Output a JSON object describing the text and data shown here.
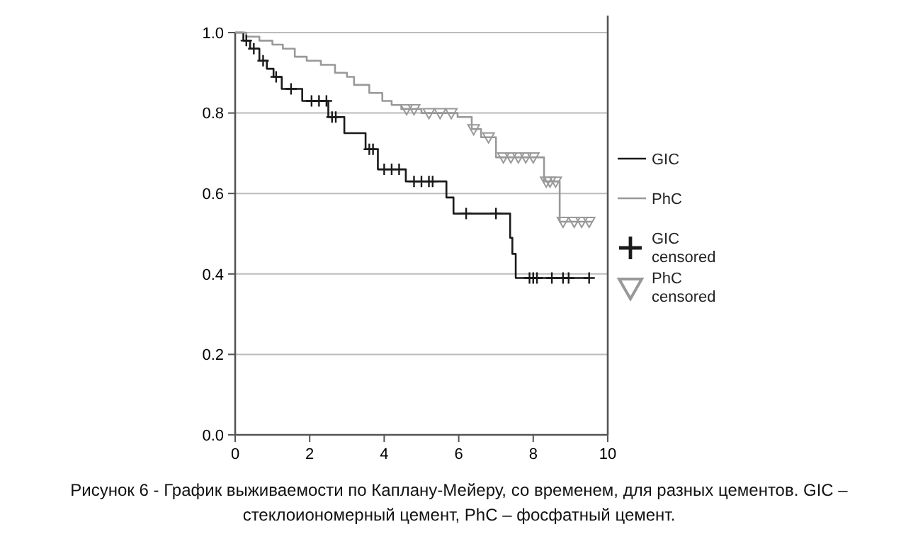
{
  "chart_data": {
    "type": "step",
    "xlim": [
      0,
      10
    ],
    "ylim": [
      0,
      1
    ],
    "xticks": [
      0,
      2,
      4,
      6,
      8,
      10
    ],
    "yticks": [
      {
        "value": 0,
        "label": "0.0"
      },
      {
        "value": 0.2,
        "label": "0.2"
      },
      {
        "value": 0.4,
        "label": "0.4"
      },
      {
        "value": 0.6,
        "label": "0.6"
      },
      {
        "value": 0.8,
        "label": "0.8"
      },
      {
        "value": 1,
        "label": "1.0"
      }
    ],
    "grid": "y",
    "legend": "right",
    "line_style": "solid",
    "series": [
      {
        "name": "GIC",
        "color": "#1a1a1a",
        "x": [
          0,
          0.22,
          0.4,
          0.65,
          0.85,
          1.03,
          1.25,
          1.8,
          2.5,
          2.93,
          3.5,
          3.83,
          4.58,
          5.67,
          5.86,
          7.38,
          7.44,
          7.53,
          9.5
        ],
        "values": [
          1,
          0.98,
          0.96,
          0.93,
          0.91,
          0.89,
          0.86,
          0.83,
          0.79,
          0.75,
          0.71,
          0.66,
          0.63,
          0.59,
          0.55,
          0.49,
          0.45,
          0.39,
          0.39
        ]
      },
      {
        "name": "PhC",
        "color": "#999999",
        "x": [
          0,
          0.3,
          0.65,
          1.0,
          1.28,
          1.6,
          1.92,
          2.3,
          2.68,
          3.0,
          3.19,
          3.6,
          3.95,
          4.2,
          4.46,
          5.0,
          5.97,
          6.35,
          6.6,
          7.0,
          8.29,
          8.71,
          9.58
        ],
        "values": [
          1,
          0.99,
          0.98,
          0.97,
          0.96,
          0.94,
          0.93,
          0.92,
          0.9,
          0.89,
          0.87,
          0.85,
          0.83,
          0.82,
          0.81,
          0.8,
          0.79,
          0.76,
          0.74,
          0.69,
          0.63,
          0.53,
          0.53
        ]
      },
      {
        "name": "GIC censored",
        "type": "scatter",
        "marker": "cross",
        "color": "#1a1a1a",
        "x": [
          0.3,
          0.5,
          0.75,
          1.1,
          1.5,
          2.05,
          2.25,
          2.45,
          2.6,
          2.7,
          3.6,
          3.7,
          4.0,
          4.2,
          4.4,
          4.8,
          5.0,
          5.2,
          5.3,
          6.2,
          7.0,
          7.9,
          8.0,
          8.1,
          8.5,
          8.8,
          8.95,
          9.5
        ],
        "values": [
          0.98,
          0.96,
          0.93,
          0.89,
          0.86,
          0.83,
          0.83,
          0.83,
          0.79,
          0.79,
          0.71,
          0.71,
          0.66,
          0.66,
          0.66,
          0.63,
          0.63,
          0.63,
          0.63,
          0.55,
          0.55,
          0.39,
          0.39,
          0.39,
          0.39,
          0.39,
          0.39,
          0.39
        ]
      },
      {
        "name": "PhC censored",
        "type": "scatter",
        "marker": "triangle",
        "color": "#999999",
        "x": [
          4.6,
          4.8,
          5.2,
          5.5,
          5.8,
          6.4,
          6.8,
          7.2,
          7.4,
          7.6,
          7.8,
          8.0,
          8.35,
          8.45,
          8.6,
          8.8,
          9.1,
          9.3,
          9.5
        ],
        "values": [
          0.81,
          0.81,
          0.8,
          0.8,
          0.8,
          0.76,
          0.74,
          0.69,
          0.69,
          0.69,
          0.69,
          0.69,
          0.63,
          0.63,
          0.63,
          0.53,
          0.53,
          0.53,
          0.53
        ]
      }
    ],
    "annotations": [
      "Рисунок 6 - График выживаемости по Каплану-Мейеру, со временем, для разных цементов. GIC – стеклоиономерный цемент, PhC – фосфатный цемент."
    ]
  }
}
